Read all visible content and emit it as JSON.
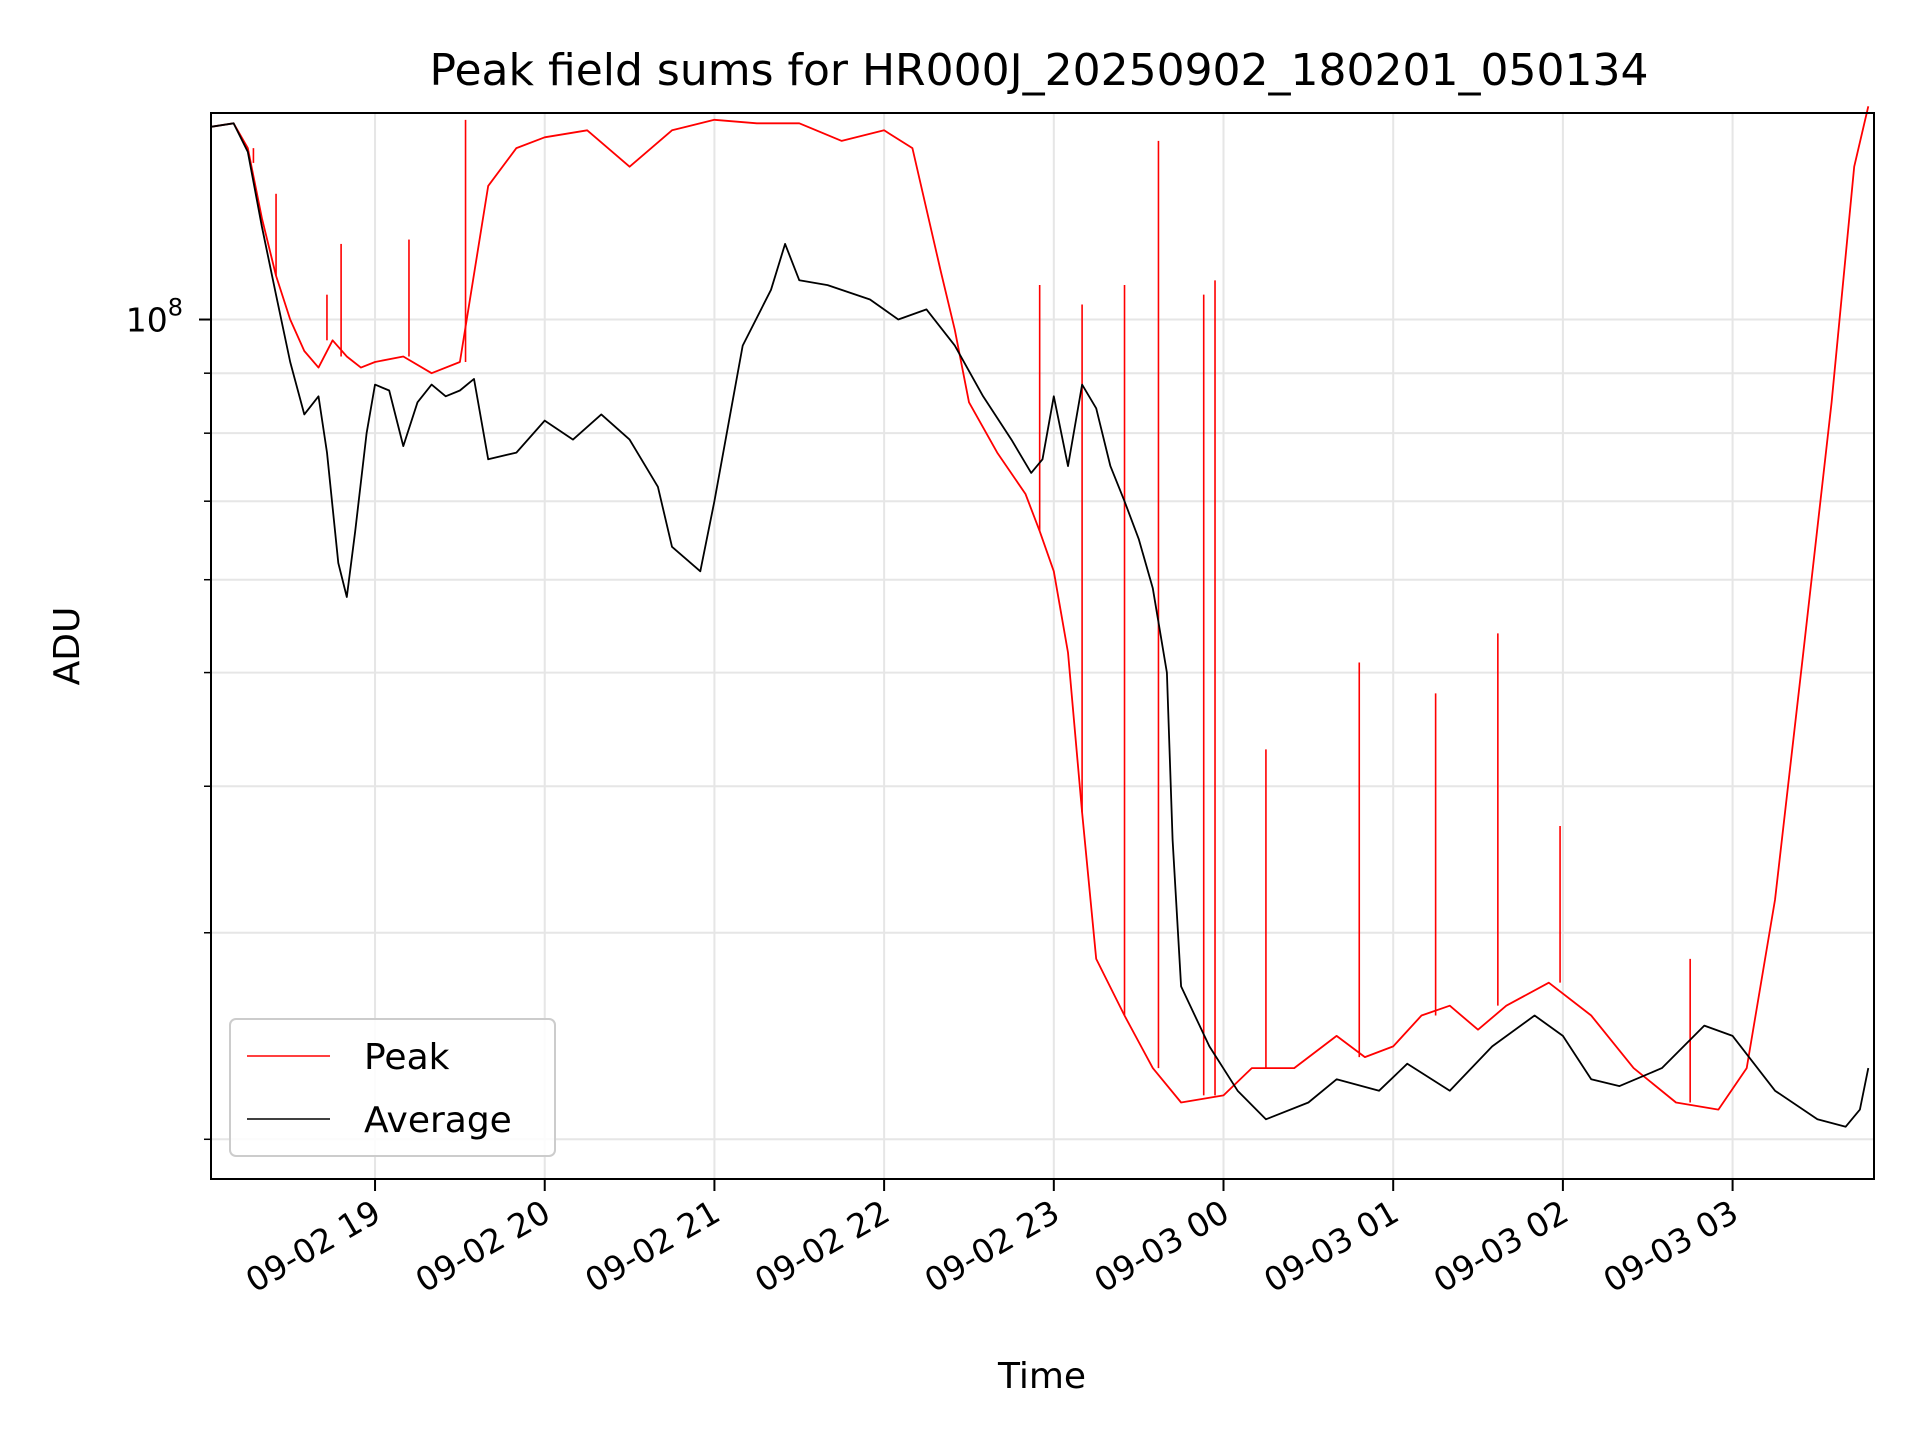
{
  "chart_data": {
    "type": "line",
    "title": "Peak field sums for HR000J_20250902_180201_050134",
    "xlabel": "Time",
    "ylabel": "ADU",
    "y_scale": "log",
    "grid": true,
    "legend_position": "lower-left",
    "x_ticks": [
      "09-02 19",
      "09-02 20",
      "09-02 21",
      "09-02 22",
      "09-02 23",
      "09-03 00",
      "09-03 01",
      "09-03 02",
      "09-03 03"
    ],
    "y_ticks": [
      {
        "base": "10",
        "exponent": "8",
        "value": 100000000
      }
    ],
    "xlim": [
      "2025-09-02 18:02",
      "2025-09-03 03:50"
    ],
    "ylim": [
      18500000,
      150000000
    ],
    "colors": {
      "Peak": "#ff0000",
      "Average": "#000000"
    },
    "series": [
      {
        "name": "Peak",
        "color": "#ff0000",
        "points": [
          [
            "2025-09-02 18:02",
            146000000.0
          ],
          [
            "2025-09-02 18:10",
            147000000.0
          ],
          [
            "2025-09-02 18:15",
            140000000.0
          ],
          [
            "2025-09-02 18:20",
            122000000.0
          ],
          [
            "2025-09-02 18:25",
            109000000.0
          ],
          [
            "2025-09-02 18:30",
            100000000.0
          ],
          [
            "2025-09-02 18:35",
            94000000.0
          ],
          [
            "2025-09-02 18:40",
            91000000.0
          ],
          [
            "2025-09-02 18:45",
            96000000.0
          ],
          [
            "2025-09-02 18:50",
            93000000.0
          ],
          [
            "2025-09-02 18:55",
            91000000.0
          ],
          [
            "2025-09-02 19:00",
            92000000.0
          ],
          [
            "2025-09-02 19:10",
            93000000.0
          ],
          [
            "2025-09-02 19:20",
            90000000.0
          ],
          [
            "2025-09-02 19:30",
            92000000.0
          ],
          [
            "2025-09-02 19:40",
            130000000.0
          ],
          [
            "2025-09-02 19:50",
            140000000.0
          ],
          [
            "2025-09-02 20:00",
            143000000.0
          ],
          [
            "2025-09-02 20:15",
            145000000.0
          ],
          [
            "2025-09-02 20:30",
            135000000.0
          ],
          [
            "2025-09-02 20:45",
            145000000.0
          ],
          [
            "2025-09-02 21:00",
            148000000.0
          ],
          [
            "2025-09-02 21:15",
            147000000.0
          ],
          [
            "2025-09-02 21:30",
            147000000.0
          ],
          [
            "2025-09-02 21:45",
            142000000.0
          ],
          [
            "2025-09-02 22:00",
            145000000.0
          ],
          [
            "2025-09-02 22:10",
            140000000.0
          ],
          [
            "2025-09-02 22:20",
            110000000.0
          ],
          [
            "2025-09-02 22:25",
            98000000.0
          ],
          [
            "2025-09-02 22:30",
            85000000.0
          ],
          [
            "2025-09-02 22:40",
            77000000.0
          ],
          [
            "2025-09-02 22:50",
            71000000.0
          ],
          [
            "2025-09-02 22:55",
            66000000.0
          ],
          [
            "2025-09-02 23:00",
            61000000.0
          ],
          [
            "2025-09-02 23:05",
            52000000.0
          ],
          [
            "2025-09-02 23:10",
            38000000.0
          ],
          [
            "2025-09-02 23:15",
            28500000.0
          ],
          [
            "2025-09-02 23:25",
            25500000.0
          ],
          [
            "2025-09-02 23:35",
            23000000.0
          ],
          [
            "2025-09-02 23:45",
            21500000.0
          ],
          [
            "2025-09-03 00:00",
            21800000.0
          ],
          [
            "2025-09-03 00:10",
            23000000.0
          ],
          [
            "2025-09-03 00:25",
            23000000.0
          ],
          [
            "2025-09-03 00:40",
            24500000.0
          ],
          [
            "2025-09-03 00:50",
            23500000.0
          ],
          [
            "2025-09-03 01:00",
            24000000.0
          ],
          [
            "2025-09-03 01:10",
            25500000.0
          ],
          [
            "2025-09-03 01:20",
            26000000.0
          ],
          [
            "2025-09-03 01:30",
            24800000.0
          ],
          [
            "2025-09-03 01:40",
            26000000.0
          ],
          [
            "2025-09-03 01:55",
            27200000.0
          ],
          [
            "2025-09-03 02:10",
            25500000.0
          ],
          [
            "2025-09-03 02:25",
            23000000.0
          ],
          [
            "2025-09-03 02:40",
            21500000.0
          ],
          [
            "2025-09-03 02:55",
            21200000.0
          ],
          [
            "2025-09-03 03:05",
            23000000.0
          ],
          [
            "2025-09-03 03:15",
            32000000.0
          ],
          [
            "2025-09-03 03:25",
            52000000.0
          ],
          [
            "2025-09-03 03:35",
            85000000.0
          ],
          [
            "2025-09-03 03:43",
            135000000.0
          ],
          [
            "2025-09-03 03:48",
            152000000.0
          ]
        ],
        "spikes": [
          [
            "2025-09-02 18:17",
            136000000.0
          ],
          [
            "2025-09-02 18:25",
            128000000.0
          ],
          [
            "2025-09-02 18:43",
            105000000.0
          ],
          [
            "2025-09-02 18:48",
            116000000.0
          ],
          [
            "2025-09-02 19:12",
            117000000.0
          ],
          [
            "2025-09-02 19:32",
            148000000.0
          ],
          [
            "2025-09-02 20:55",
            148000000.0
          ],
          [
            "2025-09-02 22:55",
            107000000.0
          ],
          [
            "2025-09-02 23:10",
            103000000.0
          ],
          [
            "2025-09-02 23:25",
            107000000.0
          ],
          [
            "2025-09-02 23:37",
            142000000.0
          ],
          [
            "2025-09-02 23:53",
            105000000.0
          ],
          [
            "2025-09-02 23:57",
            108000000.0
          ],
          [
            "2025-09-03 00:15",
            43000000.0
          ],
          [
            "2025-09-03 00:48",
            51000000.0
          ],
          [
            "2025-09-03 01:15",
            48000000.0
          ],
          [
            "2025-09-03 01:37",
            54000000.0
          ],
          [
            "2025-09-03 01:59",
            37000000.0
          ],
          [
            "2025-09-03 02:45",
            28500000.0
          ]
        ]
      },
      {
        "name": "Average",
        "color": "#000000",
        "points": [
          [
            "2025-09-02 18:02",
            146000000.0
          ],
          [
            "2025-09-02 18:10",
            147000000.0
          ],
          [
            "2025-09-02 18:15",
            139000000.0
          ],
          [
            "2025-09-02 18:20",
            120000000.0
          ],
          [
            "2025-09-02 18:25",
            105000000.0
          ],
          [
            "2025-09-02 18:30",
            92000000.0
          ],
          [
            "2025-09-02 18:35",
            83000000.0
          ],
          [
            "2025-09-02 18:40",
            86000000.0
          ],
          [
            "2025-09-02 18:43",
            77000000.0
          ],
          [
            "2025-09-02 18:47",
            62000000.0
          ],
          [
            "2025-09-02 18:50",
            58000000.0
          ],
          [
            "2025-09-02 18:53",
            66000000.0
          ],
          [
            "2025-09-02 18:57",
            80000000.0
          ],
          [
            "2025-09-02 19:00",
            88000000.0
          ],
          [
            "2025-09-02 19:05",
            87000000.0
          ],
          [
            "2025-09-02 19:10",
            78000000.0
          ],
          [
            "2025-09-02 19:15",
            85000000.0
          ],
          [
            "2025-09-02 19:20",
            88000000.0
          ],
          [
            "2025-09-02 19:25",
            86000000.0
          ],
          [
            "2025-09-02 19:30",
            87000000.0
          ],
          [
            "2025-09-02 19:35",
            89000000.0
          ],
          [
            "2025-09-02 19:40",
            76000000.0
          ],
          [
            "2025-09-02 19:50",
            77000000.0
          ],
          [
            "2025-09-02 20:00",
            82000000.0
          ],
          [
            "2025-09-02 20:10",
            79000000.0
          ],
          [
            "2025-09-02 20:20",
            83000000.0
          ],
          [
            "2025-09-02 20:30",
            79000000.0
          ],
          [
            "2025-09-02 20:40",
            72000000.0
          ],
          [
            "2025-09-02 20:45",
            64000000.0
          ],
          [
            "2025-09-02 20:55",
            61000000.0
          ],
          [
            "2025-09-02 21:00",
            70000000.0
          ],
          [
            "2025-09-02 21:10",
            95000000.0
          ],
          [
            "2025-09-02 21:20",
            106000000.0
          ],
          [
            "2025-09-02 21:25",
            116000000.0
          ],
          [
            "2025-09-02 21:30",
            108000000.0
          ],
          [
            "2025-09-02 21:40",
            107000000.0
          ],
          [
            "2025-09-02 21:55",
            104000000.0
          ],
          [
            "2025-09-02 22:05",
            100000000.0
          ],
          [
            "2025-09-02 22:15",
            102000000.0
          ],
          [
            "2025-09-02 22:25",
            95000000.0
          ],
          [
            "2025-09-02 22:35",
            86000000.0
          ],
          [
            "2025-09-02 22:45",
            79000000.0
          ],
          [
            "2025-09-02 22:52",
            74000000.0
          ],
          [
            "2025-09-02 22:56",
            76000000.0
          ],
          [
            "2025-09-02 23:00",
            86000000.0
          ],
          [
            "2025-09-02 23:05",
            75000000.0
          ],
          [
            "2025-09-02 23:10",
            88000000.0
          ],
          [
            "2025-09-02 23:15",
            84000000.0
          ],
          [
            "2025-09-02 23:20",
            75000000.0
          ],
          [
            "2025-09-02 23:25",
            70000000.0
          ],
          [
            "2025-09-02 23:30",
            65000000.0
          ],
          [
            "2025-09-02 23:35",
            59000000.0
          ],
          [
            "2025-09-02 23:40",
            50000000.0
          ],
          [
            "2025-09-02 23:42",
            36000000.0
          ],
          [
            "2025-09-02 23:45",
            27000000.0
          ],
          [
            "2025-09-02 23:55",
            24000000.0
          ],
          [
            "2025-09-03 00:05",
            22000000.0
          ],
          [
            "2025-09-03 00:15",
            20800000.0
          ],
          [
            "2025-09-03 00:30",
            21500000.0
          ],
          [
            "2025-09-03 00:40",
            22500000.0
          ],
          [
            "2025-09-03 00:55",
            22000000.0
          ],
          [
            "2025-09-03 01:05",
            23200000.0
          ],
          [
            "2025-09-03 01:20",
            22000000.0
          ],
          [
            "2025-09-03 01:35",
            24000000.0
          ],
          [
            "2025-09-03 01:50",
            25500000.0
          ],
          [
            "2025-09-03 02:00",
            24500000.0
          ],
          [
            "2025-09-03 02:10",
            22500000.0
          ],
          [
            "2025-09-03 02:20",
            22200000.0
          ],
          [
            "2025-09-03 02:35",
            23000000.0
          ],
          [
            "2025-09-03 02:50",
            25000000.0
          ],
          [
            "2025-09-03 03:00",
            24500000.0
          ],
          [
            "2025-09-03 03:15",
            22000000.0
          ],
          [
            "2025-09-03 03:30",
            20800000.0
          ],
          [
            "2025-09-03 03:40",
            20500000.0
          ],
          [
            "2025-09-03 03:45",
            21200000.0
          ],
          [
            "2025-09-03 03:48",
            23000000.0
          ]
        ]
      }
    ]
  }
}
